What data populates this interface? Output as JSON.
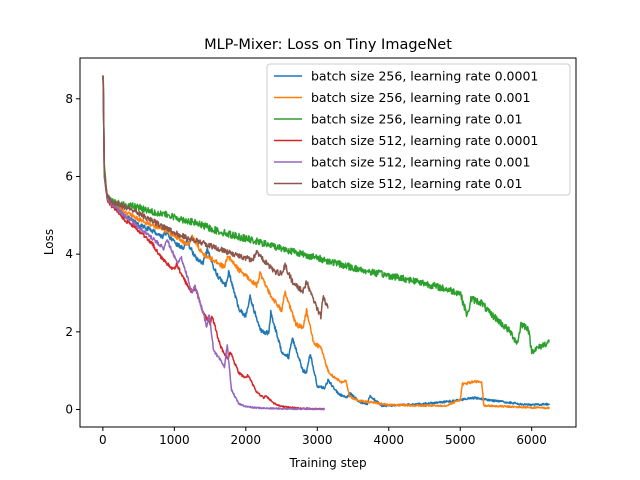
{
  "chart_data": {
    "type": "line",
    "title": "MLP-Mixer: Loss on Tiny ImageNet",
    "xlabel": "Training step",
    "ylabel": "Loss",
    "xlim": [
      -320,
      6620
    ],
    "ylim": [
      -0.45,
      9.05
    ],
    "xticks": [
      0,
      1000,
      2000,
      3000,
      4000,
      5000,
      6000
    ],
    "yticks": [
      0,
      2,
      4,
      6,
      8
    ],
    "grid": false,
    "legend_position": "top-right",
    "series": [
      {
        "name": "batch size 256, learning rate 0.0001",
        "color": "#1f77b4",
        "x": [
          0,
          5,
          20,
          60,
          120,
          300,
          500,
          700,
          830,
          880,
          1000,
          1120,
          1170,
          1300,
          1400,
          1460,
          1600,
          1720,
          1760,
          1900,
          2000,
          2060,
          2200,
          2320,
          2350,
          2500,
          2600,
          2650,
          2800,
          2850,
          2900,
          3000,
          3100,
          3150,
          3300,
          3410,
          3460,
          3600,
          3700,
          3740,
          3900,
          4000,
          4200,
          4500,
          4800,
          5000,
          5200,
          5500,
          5800,
          6000,
          6250
        ],
        "values": [
          8.6,
          8.5,
          6.2,
          5.5,
          5.3,
          5.0,
          4.75,
          4.6,
          4.45,
          4.55,
          4.3,
          4.15,
          4.35,
          3.9,
          3.75,
          4.1,
          3.45,
          3.2,
          3.55,
          2.6,
          2.4,
          2.9,
          2.05,
          1.95,
          2.5,
          1.5,
          1.35,
          1.85,
          1.0,
          0.95,
          1.45,
          0.6,
          0.55,
          0.75,
          0.4,
          0.3,
          0.42,
          0.18,
          0.15,
          0.35,
          0.1,
          0.1,
          0.12,
          0.15,
          0.2,
          0.25,
          0.3,
          0.22,
          0.15,
          0.12,
          0.14
        ],
        "noise": 0.06
      },
      {
        "name": "batch size 256, learning rate 0.001",
        "color": "#ff7f0e",
        "x": [
          0,
          5,
          20,
          60,
          120,
          300,
          500,
          700,
          900,
          1100,
          1200,
          1250,
          1400,
          1600,
          1700,
          1750,
          1900,
          2000,
          2150,
          2200,
          2300,
          2400,
          2500,
          2550,
          2700,
          2800,
          2850,
          2950,
          3050,
          3150,
          3250,
          3350,
          3400,
          3450,
          3500,
          3600,
          3800,
          4000,
          4400,
          4800,
          5000,
          5030,
          5200,
          5300,
          5330,
          5600,
          6000,
          6250
        ],
        "values": [
          8.6,
          8.45,
          6.1,
          5.5,
          5.35,
          5.1,
          4.9,
          4.75,
          4.6,
          4.35,
          4.25,
          4.45,
          4.0,
          3.8,
          3.65,
          3.95,
          3.6,
          3.45,
          3.2,
          3.5,
          3.1,
          2.8,
          2.55,
          3.0,
          2.2,
          2.1,
          2.55,
          1.7,
          1.6,
          1.0,
          0.8,
          0.7,
          0.75,
          0.35,
          0.28,
          0.22,
          0.18,
          0.12,
          0.1,
          0.1,
          0.25,
          0.65,
          0.72,
          0.7,
          0.1,
          0.08,
          0.05,
          0.04
        ],
        "noise": 0.06
      },
      {
        "name": "batch size 256, learning rate 0.01",
        "color": "#2ca02c",
        "x": [
          0,
          5,
          20,
          60,
          120,
          200,
          400,
          700,
          1000,
          1300,
          1600,
          2000,
          2400,
          2800,
          3200,
          3600,
          4000,
          4400,
          4800,
          5000,
          5100,
          5150,
          5300,
          5400,
          5500,
          5700,
          5800,
          5850,
          5950,
          6000,
          6100,
          6250
        ],
        "values": [
          8.6,
          8.3,
          6.3,
          5.5,
          5.35,
          5.3,
          5.25,
          5.1,
          4.95,
          4.8,
          4.6,
          4.4,
          4.2,
          4.0,
          3.8,
          3.6,
          3.45,
          3.3,
          3.1,
          3.0,
          2.4,
          2.85,
          2.75,
          2.5,
          2.35,
          2.0,
          1.7,
          2.2,
          2.1,
          1.5,
          1.6,
          1.75
        ],
        "noise": 0.09
      },
      {
        "name": "batch size 512, learning rate 0.0001",
        "color": "#d62728",
        "x": [
          0,
          5,
          20,
          60,
          120,
          300,
          500,
          700,
          780,
          900,
          1000,
          1030,
          1150,
          1250,
          1290,
          1400,
          1500,
          1530,
          1650,
          1750,
          1780,
          1900,
          2000,
          2030,
          2150,
          2250,
          2280,
          2400,
          2500,
          2700,
          2900,
          3100
        ],
        "values": [
          8.6,
          8.55,
          6.0,
          5.4,
          5.25,
          4.9,
          4.6,
          4.25,
          4.0,
          3.75,
          3.6,
          3.75,
          3.3,
          3.0,
          3.15,
          2.5,
          2.2,
          2.4,
          1.6,
          1.3,
          1.5,
          0.95,
          0.8,
          0.9,
          0.45,
          0.3,
          0.35,
          0.15,
          0.08,
          0.04,
          0.02,
          0.01
        ],
        "noise": 0.05
      },
      {
        "name": "batch size 512, learning rate 0.001",
        "color": "#9467bd",
        "x": [
          0,
          5,
          20,
          60,
          120,
          300,
          500,
          700,
          850,
          900,
          1000,
          1050,
          1100,
          1200,
          1250,
          1290,
          1400,
          1450,
          1490,
          1550,
          1650,
          1700,
          1740,
          1800,
          1900,
          2000,
          2100,
          2300,
          2600,
          3100
        ],
        "values": [
          8.6,
          8.55,
          6.0,
          5.45,
          5.3,
          5.0,
          4.7,
          4.4,
          4.15,
          4.35,
          3.95,
          3.75,
          3.9,
          3.3,
          3.0,
          3.2,
          2.5,
          2.15,
          2.45,
          1.5,
          1.25,
          1.1,
          1.65,
          0.5,
          0.15,
          0.08,
          0.05,
          0.03,
          0.02,
          0.01
        ],
        "noise": 0.05
      },
      {
        "name": "batch size 512, learning rate 0.01",
        "color": "#8c564b",
        "x": [
          0,
          5,
          20,
          60,
          120,
          200,
          400,
          700,
          1000,
          1300,
          1600,
          1900,
          2100,
          2150,
          2300,
          2400,
          2500,
          2550,
          2650,
          2700,
          2800,
          2850,
          2950,
          3000,
          3050,
          3080,
          3150
        ],
        "values": [
          8.6,
          8.4,
          6.1,
          5.5,
          5.35,
          5.3,
          5.15,
          4.85,
          4.55,
          4.35,
          4.15,
          3.95,
          3.85,
          4.05,
          3.75,
          3.55,
          3.5,
          3.7,
          3.3,
          3.2,
          3.05,
          3.3,
          2.8,
          2.6,
          2.4,
          2.9,
          2.6
        ],
        "noise": 0.07
      }
    ]
  }
}
